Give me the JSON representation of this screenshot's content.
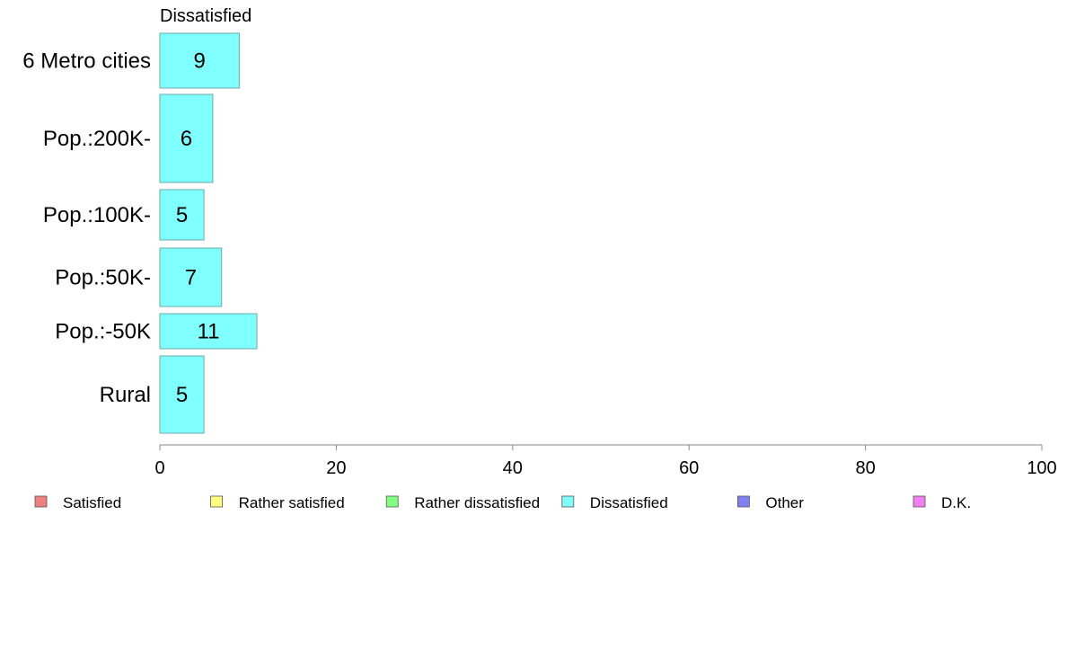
{
  "chart_data": {
    "type": "bar",
    "orientation": "horizontal",
    "title": "Dissatisfied",
    "categories": [
      "6 Metro cities",
      "Pop.:200K-",
      "Pop.:100K-",
      "Pop.:50K-",
      "Pop.:-50K",
      "Rural"
    ],
    "series": [
      {
        "name": "Dissatisfied",
        "color": "#80ffff",
        "values": [
          9,
          6,
          5,
          7,
          11,
          5
        ]
      }
    ],
    "xlim": [
      0,
      100
    ],
    "xticks": [
      0,
      20,
      40,
      60,
      80,
      100
    ],
    "xlabel": "",
    "ylabel": "",
    "grid": false,
    "legend": {
      "placement": "bottom",
      "entries": [
        {
          "label": "Satisfied",
          "color": "#f08080"
        },
        {
          "label": "Rather satisfied",
          "color": "#ffff80"
        },
        {
          "label": "Rather dissatisfied",
          "color": "#80ff80"
        },
        {
          "label": "Dissatisfied",
          "color": "#80ffff"
        },
        {
          "label": "Other",
          "color": "#8080f0"
        },
        {
          "label": "D.K.",
          "color": "#f080f0"
        }
      ]
    }
  }
}
